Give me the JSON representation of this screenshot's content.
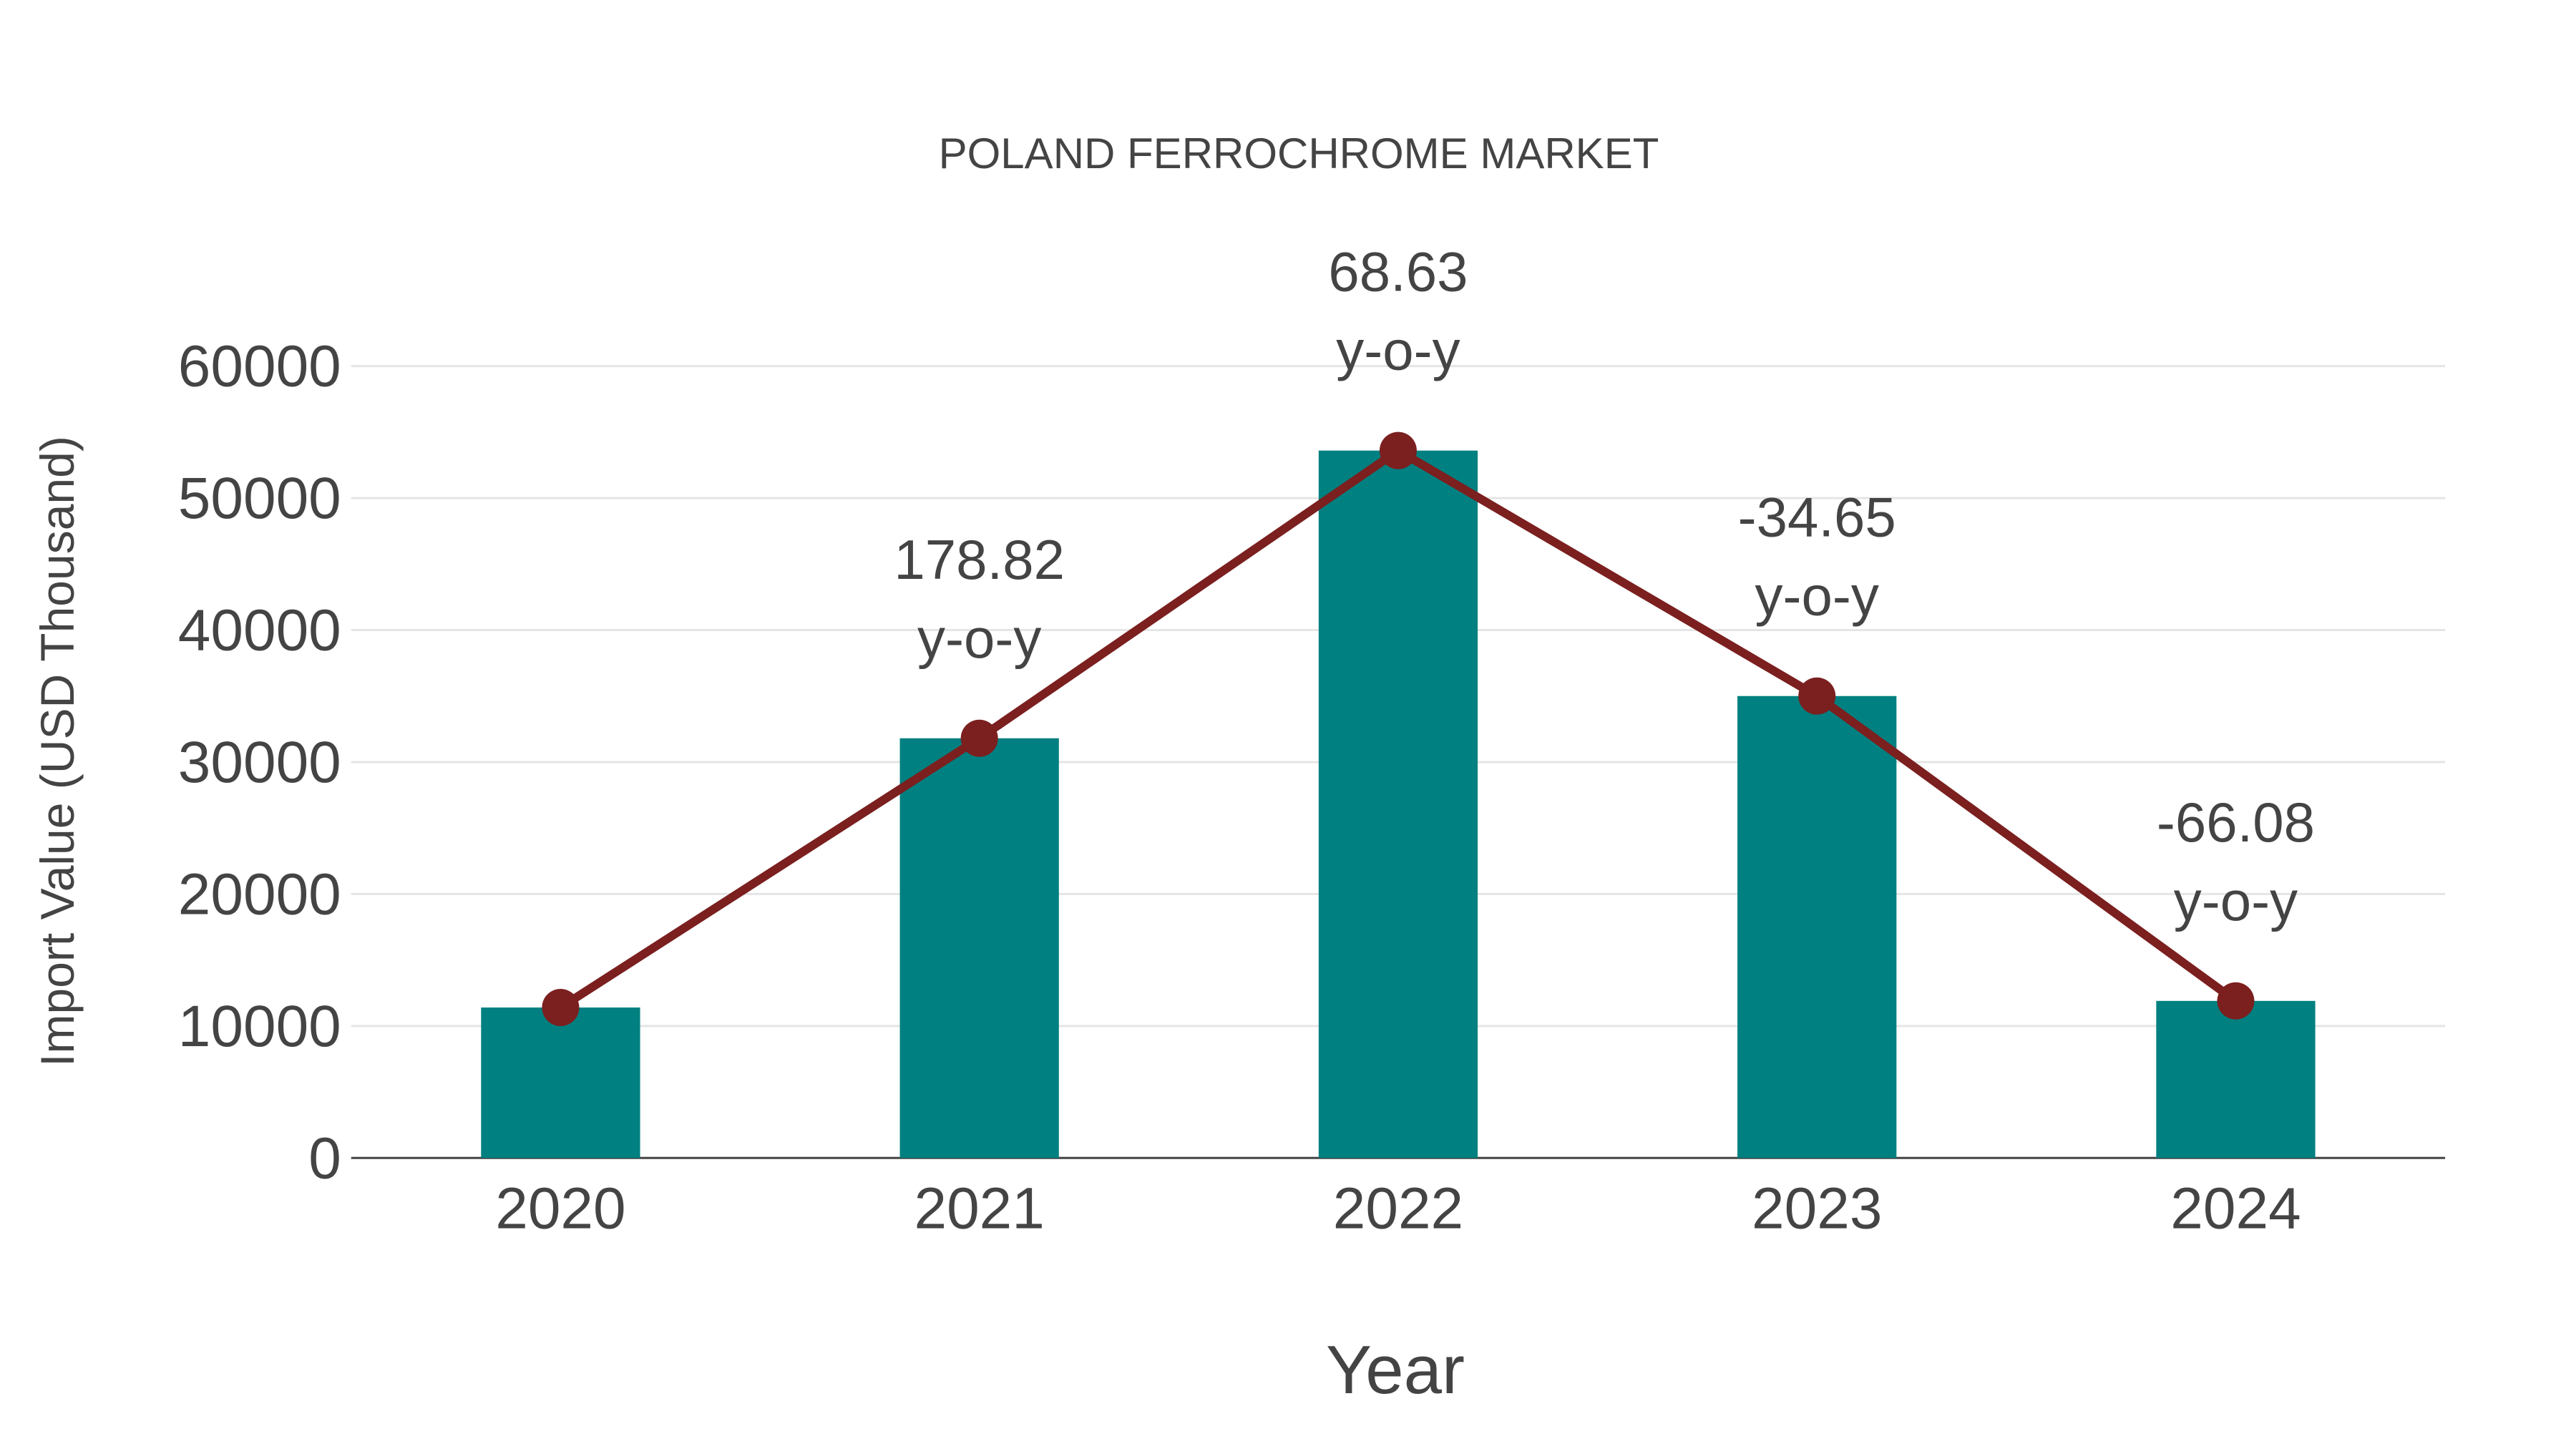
{
  "chart_data": {
    "type": "bar",
    "title": "POLAND FERROCHROME MARKET",
    "xlabel": "Year",
    "ylabel": "Import Value (USD Thousand)",
    "categories": [
      "2020",
      "2021",
      "2022",
      "2023",
      "2024"
    ],
    "series": [
      {
        "name": "Import Value",
        "type": "bar",
        "color": "#008080",
        "values": [
          11400,
          31800,
          53600,
          35000,
          11900
        ]
      },
      {
        "name": "Trend",
        "type": "line",
        "color": "#7b1f1f",
        "values": [
          11400,
          31800,
          53600,
          35000,
          11900
        ]
      }
    ],
    "annotations": [
      {
        "category": "2021",
        "value": "178.82",
        "suffix": "y-o-y"
      },
      {
        "category": "2022",
        "value": "68.63",
        "suffix": "y-o-y"
      },
      {
        "category": "2023",
        "value": "-34.65",
        "suffix": "y-o-y"
      },
      {
        "category": "2024",
        "value": "-66.08",
        "suffix": "y-o-y"
      }
    ],
    "yticks": [
      0,
      10000,
      20000,
      30000,
      40000,
      50000,
      60000
    ],
    "ylim": [
      0,
      60000
    ],
    "grid": true,
    "legend": "none"
  }
}
